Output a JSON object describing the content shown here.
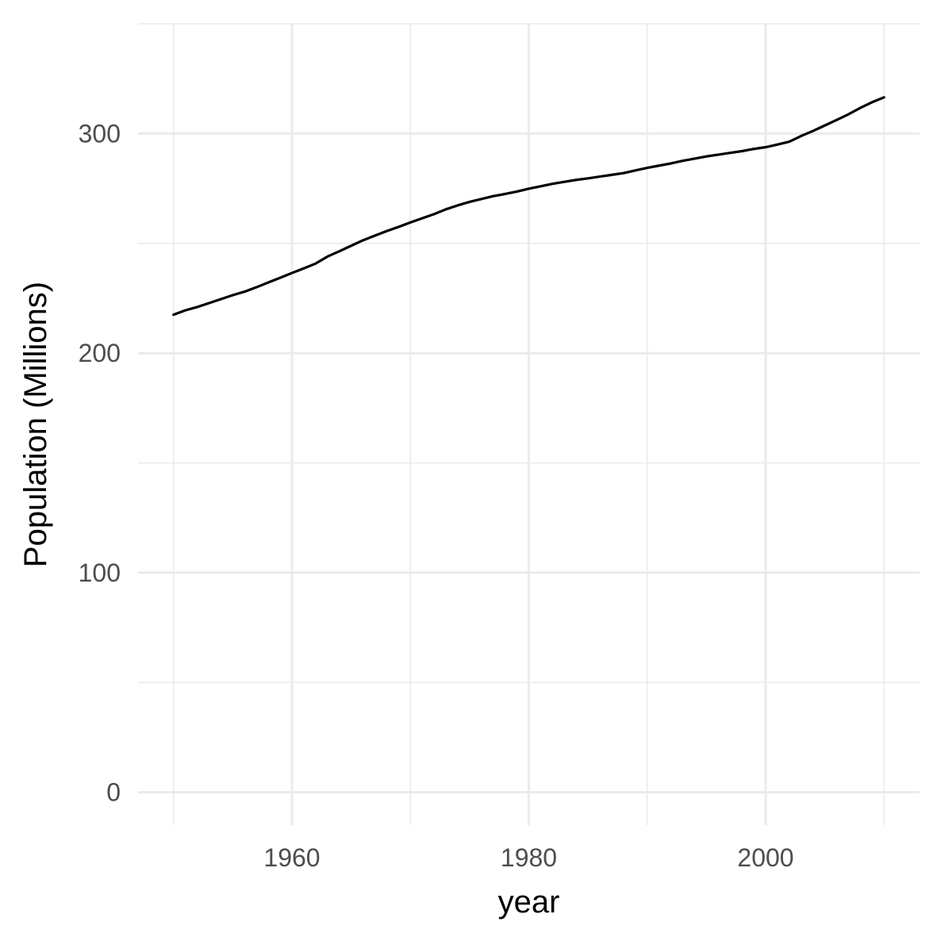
{
  "chart_data": {
    "type": "line",
    "title": "",
    "xlabel": "year",
    "ylabel": "Population (Millions)",
    "x_ticks": [
      1960,
      1980,
      2000
    ],
    "y_ticks": [
      0,
      100,
      200,
      300
    ],
    "xlim": [
      1947,
      2013
    ],
    "ylim": [
      -15,
      350
    ],
    "grid": true,
    "legend": "none",
    "line_color": "#000000",
    "grid_color": "#ebebeb",
    "series": [
      {
        "x": [
          1950,
          1951,
          1952,
          1953,
          1954,
          1955,
          1956,
          1957,
          1958,
          1959,
          1960,
          1961,
          1962,
          1963,
          1964,
          1965,
          1966,
          1967,
          1968,
          1969,
          1970,
          1971,
          1972,
          1973,
          1974,
          1975,
          1976,
          1977,
          1978,
          1979,
          1980,
          1981,
          1982,
          1983,
          1984,
          1985,
          1986,
          1987,
          1988,
          1989,
          1990,
          1991,
          1992,
          1993,
          1994,
          1995,
          1996,
          1997,
          1998,
          1999,
          2000,
          2001,
          2002,
          2003,
          2004,
          2005,
          2006,
          2007,
          2008,
          2009,
          2010
        ],
        "values": [
          217.5,
          219.5,
          221.0,
          222.8,
          224.6,
          226.4,
          228.0,
          230.0,
          232.2,
          234.3,
          236.5,
          238.6,
          240.8,
          244.0,
          246.4,
          248.9,
          251.4,
          253.5,
          255.6,
          257.5,
          259.5,
          261.4,
          263.3,
          265.5,
          267.3,
          268.9,
          270.2,
          271.5,
          272.5,
          273.6,
          274.9,
          276.0,
          277.1,
          278.0,
          278.9,
          279.6,
          280.4,
          281.2,
          282.0,
          283.2,
          284.4,
          285.4,
          286.4,
          287.6,
          288.6,
          289.6,
          290.4,
          291.2,
          292.0,
          293.0,
          293.8,
          295.0,
          296.3,
          298.9,
          301.2,
          303.7,
          306.2,
          308.8,
          311.7,
          314.3,
          316.5
        ]
      }
    ]
  }
}
